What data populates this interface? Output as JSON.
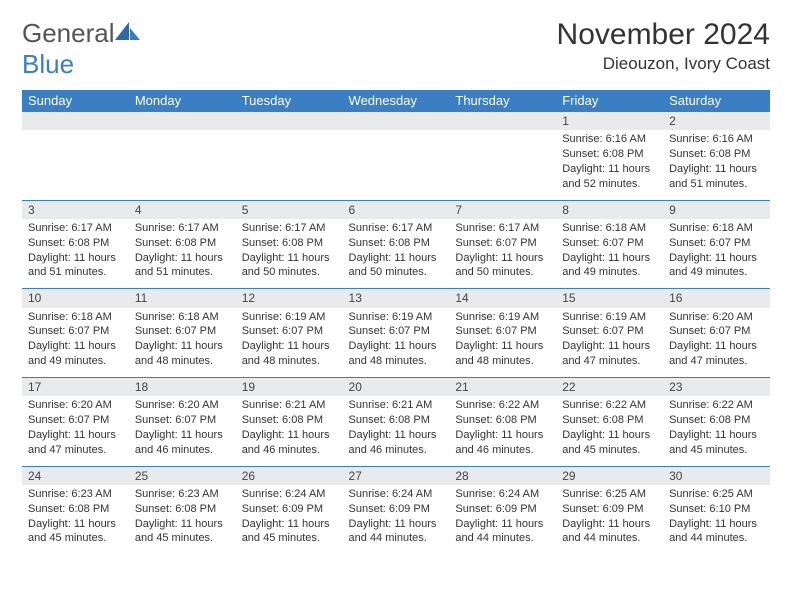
{
  "logo": {
    "text1": "General",
    "text2": "Blue"
  },
  "title": "November 2024",
  "location": "Dieouzon, Ivory Coast",
  "colors": {
    "header_bg": "#3a7fc4",
    "daynum_bg": "#e9eaec",
    "border": "#3a7fc4",
    "text": "#333333"
  },
  "day_headers": [
    "Sunday",
    "Monday",
    "Tuesday",
    "Wednesday",
    "Thursday",
    "Friday",
    "Saturday"
  ],
  "weeks": [
    [
      {
        "num": "",
        "sunrise": "",
        "sunset": "",
        "daylight": ""
      },
      {
        "num": "",
        "sunrise": "",
        "sunset": "",
        "daylight": ""
      },
      {
        "num": "",
        "sunrise": "",
        "sunset": "",
        "daylight": ""
      },
      {
        "num": "",
        "sunrise": "",
        "sunset": "",
        "daylight": ""
      },
      {
        "num": "",
        "sunrise": "",
        "sunset": "",
        "daylight": ""
      },
      {
        "num": "1",
        "sunrise": "Sunrise: 6:16 AM",
        "sunset": "Sunset: 6:08 PM",
        "daylight": "Daylight: 11 hours and 52 minutes."
      },
      {
        "num": "2",
        "sunrise": "Sunrise: 6:16 AM",
        "sunset": "Sunset: 6:08 PM",
        "daylight": "Daylight: 11 hours and 51 minutes."
      }
    ],
    [
      {
        "num": "3",
        "sunrise": "Sunrise: 6:17 AM",
        "sunset": "Sunset: 6:08 PM",
        "daylight": "Daylight: 11 hours and 51 minutes."
      },
      {
        "num": "4",
        "sunrise": "Sunrise: 6:17 AM",
        "sunset": "Sunset: 6:08 PM",
        "daylight": "Daylight: 11 hours and 51 minutes."
      },
      {
        "num": "5",
        "sunrise": "Sunrise: 6:17 AM",
        "sunset": "Sunset: 6:08 PM",
        "daylight": "Daylight: 11 hours and 50 minutes."
      },
      {
        "num": "6",
        "sunrise": "Sunrise: 6:17 AM",
        "sunset": "Sunset: 6:08 PM",
        "daylight": "Daylight: 11 hours and 50 minutes."
      },
      {
        "num": "7",
        "sunrise": "Sunrise: 6:17 AM",
        "sunset": "Sunset: 6:07 PM",
        "daylight": "Daylight: 11 hours and 50 minutes."
      },
      {
        "num": "8",
        "sunrise": "Sunrise: 6:18 AM",
        "sunset": "Sunset: 6:07 PM",
        "daylight": "Daylight: 11 hours and 49 minutes."
      },
      {
        "num": "9",
        "sunrise": "Sunrise: 6:18 AM",
        "sunset": "Sunset: 6:07 PM",
        "daylight": "Daylight: 11 hours and 49 minutes."
      }
    ],
    [
      {
        "num": "10",
        "sunrise": "Sunrise: 6:18 AM",
        "sunset": "Sunset: 6:07 PM",
        "daylight": "Daylight: 11 hours and 49 minutes."
      },
      {
        "num": "11",
        "sunrise": "Sunrise: 6:18 AM",
        "sunset": "Sunset: 6:07 PM",
        "daylight": "Daylight: 11 hours and 48 minutes."
      },
      {
        "num": "12",
        "sunrise": "Sunrise: 6:19 AM",
        "sunset": "Sunset: 6:07 PM",
        "daylight": "Daylight: 11 hours and 48 minutes."
      },
      {
        "num": "13",
        "sunrise": "Sunrise: 6:19 AM",
        "sunset": "Sunset: 6:07 PM",
        "daylight": "Daylight: 11 hours and 48 minutes."
      },
      {
        "num": "14",
        "sunrise": "Sunrise: 6:19 AM",
        "sunset": "Sunset: 6:07 PM",
        "daylight": "Daylight: 11 hours and 48 minutes."
      },
      {
        "num": "15",
        "sunrise": "Sunrise: 6:19 AM",
        "sunset": "Sunset: 6:07 PM",
        "daylight": "Daylight: 11 hours and 47 minutes."
      },
      {
        "num": "16",
        "sunrise": "Sunrise: 6:20 AM",
        "sunset": "Sunset: 6:07 PM",
        "daylight": "Daylight: 11 hours and 47 minutes."
      }
    ],
    [
      {
        "num": "17",
        "sunrise": "Sunrise: 6:20 AM",
        "sunset": "Sunset: 6:07 PM",
        "daylight": "Daylight: 11 hours and 47 minutes."
      },
      {
        "num": "18",
        "sunrise": "Sunrise: 6:20 AM",
        "sunset": "Sunset: 6:07 PM",
        "daylight": "Daylight: 11 hours and 46 minutes."
      },
      {
        "num": "19",
        "sunrise": "Sunrise: 6:21 AM",
        "sunset": "Sunset: 6:08 PM",
        "daylight": "Daylight: 11 hours and 46 minutes."
      },
      {
        "num": "20",
        "sunrise": "Sunrise: 6:21 AM",
        "sunset": "Sunset: 6:08 PM",
        "daylight": "Daylight: 11 hours and 46 minutes."
      },
      {
        "num": "21",
        "sunrise": "Sunrise: 6:22 AM",
        "sunset": "Sunset: 6:08 PM",
        "daylight": "Daylight: 11 hours and 46 minutes."
      },
      {
        "num": "22",
        "sunrise": "Sunrise: 6:22 AM",
        "sunset": "Sunset: 6:08 PM",
        "daylight": "Daylight: 11 hours and 45 minutes."
      },
      {
        "num": "23",
        "sunrise": "Sunrise: 6:22 AM",
        "sunset": "Sunset: 6:08 PM",
        "daylight": "Daylight: 11 hours and 45 minutes."
      }
    ],
    [
      {
        "num": "24",
        "sunrise": "Sunrise: 6:23 AM",
        "sunset": "Sunset: 6:08 PM",
        "daylight": "Daylight: 11 hours and 45 minutes."
      },
      {
        "num": "25",
        "sunrise": "Sunrise: 6:23 AM",
        "sunset": "Sunset: 6:08 PM",
        "daylight": "Daylight: 11 hours and 45 minutes."
      },
      {
        "num": "26",
        "sunrise": "Sunrise: 6:24 AM",
        "sunset": "Sunset: 6:09 PM",
        "daylight": "Daylight: 11 hours and 45 minutes."
      },
      {
        "num": "27",
        "sunrise": "Sunrise: 6:24 AM",
        "sunset": "Sunset: 6:09 PM",
        "daylight": "Daylight: 11 hours and 44 minutes."
      },
      {
        "num": "28",
        "sunrise": "Sunrise: 6:24 AM",
        "sunset": "Sunset: 6:09 PM",
        "daylight": "Daylight: 11 hours and 44 minutes."
      },
      {
        "num": "29",
        "sunrise": "Sunrise: 6:25 AM",
        "sunset": "Sunset: 6:09 PM",
        "daylight": "Daylight: 11 hours and 44 minutes."
      },
      {
        "num": "30",
        "sunrise": "Sunrise: 6:25 AM",
        "sunset": "Sunset: 6:10 PM",
        "daylight": "Daylight: 11 hours and 44 minutes."
      }
    ]
  ]
}
